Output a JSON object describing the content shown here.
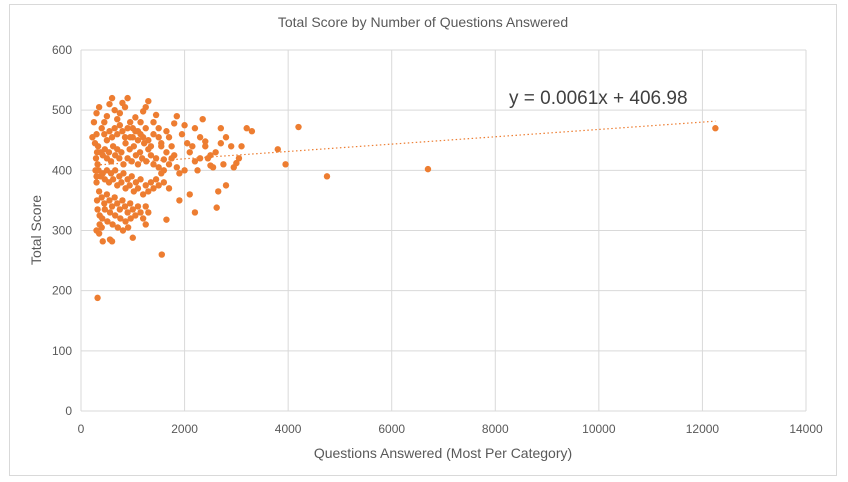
{
  "chart_data": {
    "type": "scatter",
    "title": "Total Score by Number  of Questions  Answered",
    "xlabel": "Questions  Answered  (Most Per Category)",
    "ylabel": "Total Score",
    "xlim": [
      0,
      14000
    ],
    "ylim": [
      0,
      600
    ],
    "xticks": [
      0,
      2000,
      4000,
      6000,
      8000,
      10000,
      12000,
      14000
    ],
    "yticks": [
      0,
      100,
      200,
      300,
      400,
      500,
      600
    ],
    "x_tick_labels": [
      "0",
      "2000",
      "4000",
      "6000",
      "8000",
      "10000",
      "12000",
      "14000"
    ],
    "y_tick_labels": [
      "0",
      "100",
      "200",
      "300",
      "400",
      "500",
      "600"
    ],
    "grid": true,
    "legend": "none",
    "marker_color": "#ED7D31",
    "trendline": {
      "type": "linear",
      "slope": 0.0061,
      "intercept": 406.98,
      "equation_label": "y = 0.0061x + 406.98",
      "x_range": [
        300,
        12250
      ],
      "style": "dotted",
      "color": "#ED7D31"
    },
    "points": [
      [
        320,
        188
      ],
      [
        1560,
        260
      ],
      [
        300,
        300
      ],
      [
        350,
        295
      ],
      [
        420,
        282
      ],
      [
        560,
        285
      ],
      [
        600,
        282
      ],
      [
        1000,
        288
      ],
      [
        1250,
        310
      ],
      [
        1650,
        318
      ],
      [
        2200,
        330
      ],
      [
        2620,
        338
      ],
      [
        1900,
        350
      ],
      [
        2100,
        360
      ],
      [
        2650,
        365
      ],
      [
        2800,
        375
      ],
      [
        3050,
        420
      ],
      [
        3200,
        470
      ],
      [
        3300,
        465
      ],
      [
        3800,
        435
      ],
      [
        3950,
        410
      ],
      [
        4200,
        472
      ],
      [
        4750,
        390
      ],
      [
        6700,
        402
      ],
      [
        12250,
        470
      ],
      [
        2900,
        440
      ],
      [
        2700,
        445
      ],
      [
        2500,
        408
      ],
      [
        2600,
        430
      ],
      [
        2400,
        448
      ],
      [
        2300,
        455
      ],
      [
        2350,
        485
      ],
      [
        2200,
        470
      ],
      [
        2000,
        475
      ],
      [
        1950,
        460
      ],
      [
        1850,
        490
      ],
      [
        1800,
        478
      ],
      [
        1750,
        440
      ],
      [
        1700,
        455
      ],
      [
        1650,
        430
      ],
      [
        1600,
        418
      ],
      [
        1550,
        445
      ],
      [
        1500,
        470
      ],
      [
        1450,
        492
      ],
      [
        1400,
        460
      ],
      [
        1350,
        440
      ],
      [
        1300,
        515
      ],
      [
        1250,
        505
      ],
      [
        1200,
        498
      ],
      [
        1150,
        480
      ],
      [
        1100,
        465
      ],
      [
        1050,
        488
      ],
      [
        1000,
        470
      ],
      [
        950,
        455
      ],
      [
        900,
        520
      ],
      [
        850,
        505
      ],
      [
        800,
        512
      ],
      [
        750,
        495
      ],
      [
        700,
        485
      ],
      [
        650,
        500
      ],
      [
        600,
        520
      ],
      [
        550,
        510
      ],
      [
        500,
        490
      ],
      [
        450,
        480
      ],
      [
        400,
        470
      ],
      [
        350,
        505
      ],
      [
        300,
        495
      ],
      [
        250,
        480
      ],
      [
        220,
        455
      ],
      [
        330,
        440
      ],
      [
        380,
        430
      ],
      [
        420,
        425
      ],
      [
        460,
        435
      ],
      [
        500,
        420
      ],
      [
        540,
        430
      ],
      [
        580,
        415
      ],
      [
        620,
        440
      ],
      [
        660,
        425
      ],
      [
        700,
        435
      ],
      [
        740,
        420
      ],
      [
        780,
        430
      ],
      [
        820,
        410
      ],
      [
        860,
        445
      ],
      [
        900,
        420
      ],
      [
        940,
        435
      ],
      [
        980,
        415
      ],
      [
        1020,
        440
      ],
      [
        1060,
        425
      ],
      [
        1100,
        410
      ],
      [
        1140,
        430
      ],
      [
        1180,
        420
      ],
      [
        1220,
        445
      ],
      [
        1260,
        415
      ],
      [
        1300,
        435
      ],
      [
        1350,
        425
      ],
      [
        1400,
        410
      ],
      [
        1450,
        420
      ],
      [
        1500,
        405
      ],
      [
        1550,
        395
      ],
      [
        1600,
        400
      ],
      [
        1700,
        410
      ],
      [
        1800,
        425
      ],
      [
        1900,
        395
      ],
      [
        2000,
        400
      ],
      [
        2100,
        430
      ],
      [
        2200,
        415
      ],
      [
        2300,
        420
      ],
      [
        2400,
        440
      ],
      [
        2500,
        425
      ],
      [
        340,
        400
      ],
      [
        380,
        390
      ],
      [
        420,
        395
      ],
      [
        460,
        385
      ],
      [
        500,
        400
      ],
      [
        540,
        380
      ],
      [
        580,
        395
      ],
      [
        620,
        385
      ],
      [
        660,
        400
      ],
      [
        700,
        375
      ],
      [
        740,
        390
      ],
      [
        780,
        380
      ],
      [
        820,
        395
      ],
      [
        860,
        370
      ],
      [
        900,
        385
      ],
      [
        940,
        375
      ],
      [
        980,
        390
      ],
      [
        1020,
        365
      ],
      [
        1060,
        380
      ],
      [
        1100,
        370
      ],
      [
        1150,
        385
      ],
      [
        1200,
        360
      ],
      [
        1250,
        375
      ],
      [
        1300,
        365
      ],
      [
        1350,
        380
      ],
      [
        1400,
        370
      ],
      [
        1450,
        385
      ],
      [
        1500,
        375
      ],
      [
        1600,
        380
      ],
      [
        1700,
        370
      ],
      [
        350,
        365
      ],
      [
        400,
        355
      ],
      [
        450,
        345
      ],
      [
        500,
        360
      ],
      [
        550,
        350
      ],
      [
        600,
        340
      ],
      [
        650,
        355
      ],
      [
        700,
        345
      ],
      [
        750,
        335
      ],
      [
        800,
        350
      ],
      [
        850,
        340
      ],
      [
        900,
        330
      ],
      [
        950,
        345
      ],
      [
        1000,
        335
      ],
      [
        1050,
        325
      ],
      [
        1100,
        340
      ],
      [
        1150,
        330
      ],
      [
        1200,
        320
      ],
      [
        1250,
        340
      ],
      [
        1300,
        330
      ],
      [
        360,
        325
      ],
      [
        410,
        320
      ],
      [
        460,
        335
      ],
      [
        510,
        315
      ],
      [
        560,
        330
      ],
      [
        610,
        310
      ],
      [
        660,
        325
      ],
      [
        710,
        305
      ],
      [
        760,
        320
      ],
      [
        810,
        300
      ],
      [
        860,
        315
      ],
      [
        910,
        305
      ],
      [
        960,
        320
      ],
      [
        360,
        310
      ],
      [
        400,
        305
      ],
      [
        300,
        460
      ],
      [
        310,
        430
      ],
      [
        320,
        410
      ],
      [
        300,
        380
      ],
      [
        310,
        350
      ],
      [
        320,
        335
      ],
      [
        290,
        420
      ],
      [
        280,
        400
      ],
      [
        300,
        390
      ],
      [
        270,
        445
      ],
      [
        450,
        460
      ],
      [
        500,
        450
      ],
      [
        550,
        465
      ],
      [
        600,
        455
      ],
      [
        650,
        470
      ],
      [
        700,
        460
      ],
      [
        750,
        475
      ],
      [
        800,
        465
      ],
      [
        850,
        455
      ],
      [
        900,
        470
      ],
      [
        950,
        480
      ],
      [
        1000,
        455
      ],
      [
        1050,
        465
      ],
      [
        1100,
        450
      ],
      [
        1150,
        460
      ],
      [
        1200,
        455
      ],
      [
        1250,
        470
      ],
      [
        1300,
        450
      ],
      [
        1400,
        480
      ],
      [
        1500,
        455
      ],
      [
        1550,
        440
      ],
      [
        1650,
        465
      ],
      [
        1750,
        420
      ],
      [
        1850,
        405
      ],
      [
        2050,
        445
      ],
      [
        2150,
        440
      ],
      [
        2250,
        400
      ],
      [
        2450,
        420
      ],
      [
        2550,
        405
      ],
      [
        2750,
        410
      ],
      [
        3100,
        440
      ],
      [
        2950,
        405
      ],
      [
        3000,
        412
      ],
      [
        2800,
        455
      ],
      [
        2700,
        470
      ]
    ]
  }
}
